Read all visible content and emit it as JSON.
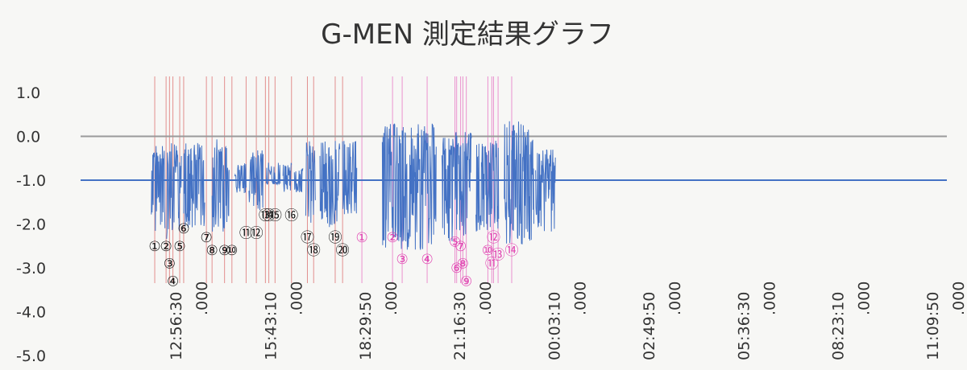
{
  "chart_data": {
    "type": "line",
    "title": "G-MEN 測定結果グラフ",
    "xlabel": "",
    "ylabel": "",
    "ylim": [
      -5.0,
      1.0
    ],
    "y_ticks": [
      "1.0",
      "0.0",
      "-1.0",
      "-2.0",
      "-3.0",
      "-4.0",
      "-5.0"
    ],
    "y_tick_values": [
      1.0,
      0.0,
      -1.0,
      -2.0,
      -3.0,
      -4.0,
      -5.0
    ],
    "x_ticks": [
      {
        "time": "12:56:30",
        "frac": ".000"
      },
      {
        "time": "15:43:10",
        "frac": ".000"
      },
      {
        "time": "18:29:50",
        "frac": ".000"
      },
      {
        "time": "21:16:30",
        "frac": ".000"
      },
      {
        "time": "00:03:10",
        "frac": ".000"
      },
      {
        "time": "02:49:50",
        "frac": ".000"
      },
      {
        "time": "05:36:30",
        "frac": ".000"
      },
      {
        "time": "08:23:10",
        "frac": ".000"
      },
      {
        "time": "11:09:50",
        "frac": ".000"
      }
    ],
    "reference_lines": [
      {
        "y": 0.0,
        "color": "#9a9a9a"
      },
      {
        "y": -1.0,
        "color": "#4472c4"
      }
    ],
    "grid": false,
    "series": [
      {
        "color": "#4472c4",
        "baseline": -1.0,
        "segments": [
          {
            "start": "11:58:00",
            "end": "12:22:00",
            "max": -0.2,
            "min": -2.2
          },
          {
            "start": "12:25:00",
            "end": "12:51:00",
            "max": -0.1,
            "min": -2.4
          },
          {
            "start": "12:55:00",
            "end": "13:32:00",
            "max": -0.1,
            "min": -2.1
          },
          {
            "start": "13:45:00",
            "end": "14:15:00",
            "max": 0.0,
            "min": -2.2
          },
          {
            "start": "14:25:00",
            "end": "14:45:00",
            "max": -0.6,
            "min": -1.3
          },
          {
            "start": "14:50:00",
            "end": "15:15:00",
            "max": -0.3,
            "min": -1.7
          },
          {
            "start": "15:20:00",
            "end": "15:45:00",
            "max": -0.6,
            "min": -1.1
          },
          {
            "start": "15:50:00",
            "end": "16:05:00",
            "max": -0.6,
            "min": -1.3
          },
          {
            "start": "16:10:00",
            "end": "16:25:00",
            "max": -0.7,
            "min": -1.3
          },
          {
            "start": "16:30:00",
            "end": "16:47:00",
            "max": -0.1,
            "min": -2.0
          },
          {
            "start": "16:55:00",
            "end": "17:30:00",
            "max": -0.1,
            "min": -2.1
          },
          {
            "start": "17:35:00",
            "end": "18:00:00",
            "max": -0.1,
            "min": -1.8
          },
          {
            "start": "18:45:00",
            "end": "20:20:00",
            "max": 0.3,
            "min": -2.6
          },
          {
            "start": "20:30:00",
            "end": "21:22:00",
            "max": 0.1,
            "min": -2.4
          },
          {
            "start": "21:30:00",
            "end": "22:10:00",
            "max": -0.1,
            "min": -2.2
          },
          {
            "start": "22:20:00",
            "end": "23:12:00",
            "max": 0.4,
            "min": -2.5
          },
          {
            "start": "23:15:00",
            "end": "23:50:00",
            "max": -0.3,
            "min": -2.2
          }
        ]
      }
    ],
    "event_markers": [
      {
        "time": "12:04:00",
        "label": "①",
        "color": "#d23b3b",
        "label_y": -2.5
      },
      {
        "time": "12:24:00",
        "label": "②",
        "color": "#d23b3b",
        "label_y": -2.5
      },
      {
        "time": "12:30:00",
        "label": "③",
        "color": "#d23b3b",
        "label_y": -2.9
      },
      {
        "time": "12:36:00",
        "label": "④",
        "color": "#d23b3b",
        "label_y": -3.3
      },
      {
        "time": "12:48:00",
        "label": "⑤",
        "color": "#d23b3b",
        "label_y": -2.5
      },
      {
        "time": "12:55:00",
        "label": "⑥",
        "color": "#d23b3b",
        "label_y": -2.1
      },
      {
        "time": "13:35:00",
        "label": "⑦",
        "color": "#d23b3b",
        "label_y": -2.3
      },
      {
        "time": "13:45:00",
        "label": "⑧",
        "color": "#d23b3b",
        "label_y": -2.6
      },
      {
        "time": "14:07:00",
        "label": "⑨",
        "color": "#d23b3b",
        "label_y": -2.6
      },
      {
        "time": "14:20:00",
        "label": "⑩",
        "color": "#d23b3b",
        "label_y": -2.6
      },
      {
        "time": "14:45:00",
        "label": "⑪",
        "color": "#d23b3b",
        "label_y": -2.2
      },
      {
        "time": "15:03:00",
        "label": "⑫",
        "color": "#d23b3b",
        "label_y": -2.2
      },
      {
        "time": "15:19:00",
        "label": "⑬",
        "color": "#d23b3b",
        "label_y": -1.8
      },
      {
        "time": "15:25:00",
        "label": "⑭",
        "color": "#d23b3b",
        "label_y": -1.8
      },
      {
        "time": "15:36:00",
        "label": "⑮",
        "color": "#d23b3b",
        "label_y": -1.8
      },
      {
        "time": "16:05:00",
        "label": "⑯",
        "color": "#d23b3b",
        "label_y": -1.8
      },
      {
        "time": "16:33:00",
        "label": "⑰",
        "color": "#d23b3b",
        "label_y": -2.3
      },
      {
        "time": "16:44:00",
        "label": "⑱",
        "color": "#d23b3b",
        "label_y": -2.6
      },
      {
        "time": "17:22:00",
        "label": "⑲",
        "color": "#d23b3b",
        "label_y": -2.3
      },
      {
        "time": "17:35:00",
        "label": "⑳",
        "color": "#d23b3b",
        "label_y": -2.6
      },
      {
        "time": "18:09:00",
        "label": "①",
        "color": "#e040b0",
        "label_y": -2.3
      },
      {
        "time": "19:03:00",
        "label": "②",
        "color": "#e040b0",
        "label_y": -2.3
      },
      {
        "time": "19:20:00",
        "label": "③",
        "color": "#e040b0",
        "label_y": -2.8
      },
      {
        "time": "20:04:00",
        "label": "④",
        "color": "#e040b0",
        "label_y": -2.8
      },
      {
        "time": "20:53:00",
        "label": "⑤",
        "color": "#e040b0",
        "label_y": -2.4
      },
      {
        "time": "20:56:00",
        "label": "⑥",
        "color": "#e040b0",
        "label_y": -3.0
      },
      {
        "time": "21:03:00",
        "label": "⑦",
        "color": "#e040b0",
        "label_y": -2.5
      },
      {
        "time": "21:07:00",
        "label": "⑧",
        "color": "#e040b0",
        "label_y": -2.9
      },
      {
        "time": "21:13:00",
        "label": "⑨",
        "color": "#e040b0",
        "label_y": -3.3
      },
      {
        "time": "21:51:00",
        "label": "⑩",
        "color": "#e040b0",
        "label_y": -2.6
      },
      {
        "time": "21:58:00",
        "label": "⑪",
        "color": "#e040b0",
        "label_y": -2.9
      },
      {
        "time": "22:01:00",
        "label": "⑫",
        "color": "#e040b0",
        "label_y": -2.3
      },
      {
        "time": "22:09:00",
        "label": "⑬",
        "color": "#e040b0",
        "label_y": -2.7
      },
      {
        "time": "22:33:00",
        "label": "⑭",
        "color": "#e040b0",
        "label_y": -2.6
      }
    ]
  }
}
